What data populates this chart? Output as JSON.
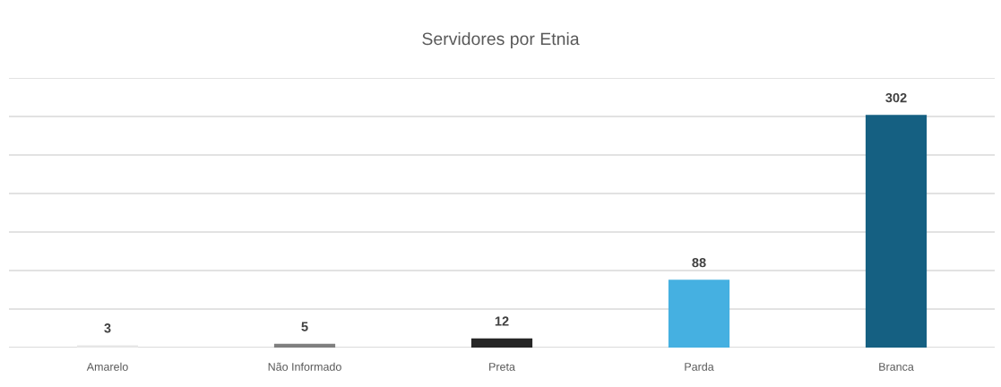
{
  "chart_data": {
    "type": "bar",
    "title": "Servidores por Etnia",
    "categories": [
      "Amarelo",
      "Não Informado",
      "Preta",
      "Parda",
      "Branca"
    ],
    "values": [
      3,
      5,
      12,
      88,
      302
    ],
    "colors": [
      "#e6e6e6",
      "#7f7f7f",
      "#262626",
      "#45b0e1",
      "#156082"
    ],
    "ylim": [
      0,
      350
    ],
    "yticks": [
      {
        "value": 0,
        "label": null
      },
      {
        "value": 50,
        "label": null
      },
      {
        "value": 100,
        "label": null
      },
      {
        "value": 150,
        "label": null
      },
      {
        "value": 200,
        "label": null
      },
      {
        "value": 250,
        "label": null
      },
      {
        "value": 300,
        "label": null
      },
      {
        "value": 350,
        "label": null
      }
    ],
    "grid": "y",
    "tick_labels": "x",
    "data_labels": true
  }
}
